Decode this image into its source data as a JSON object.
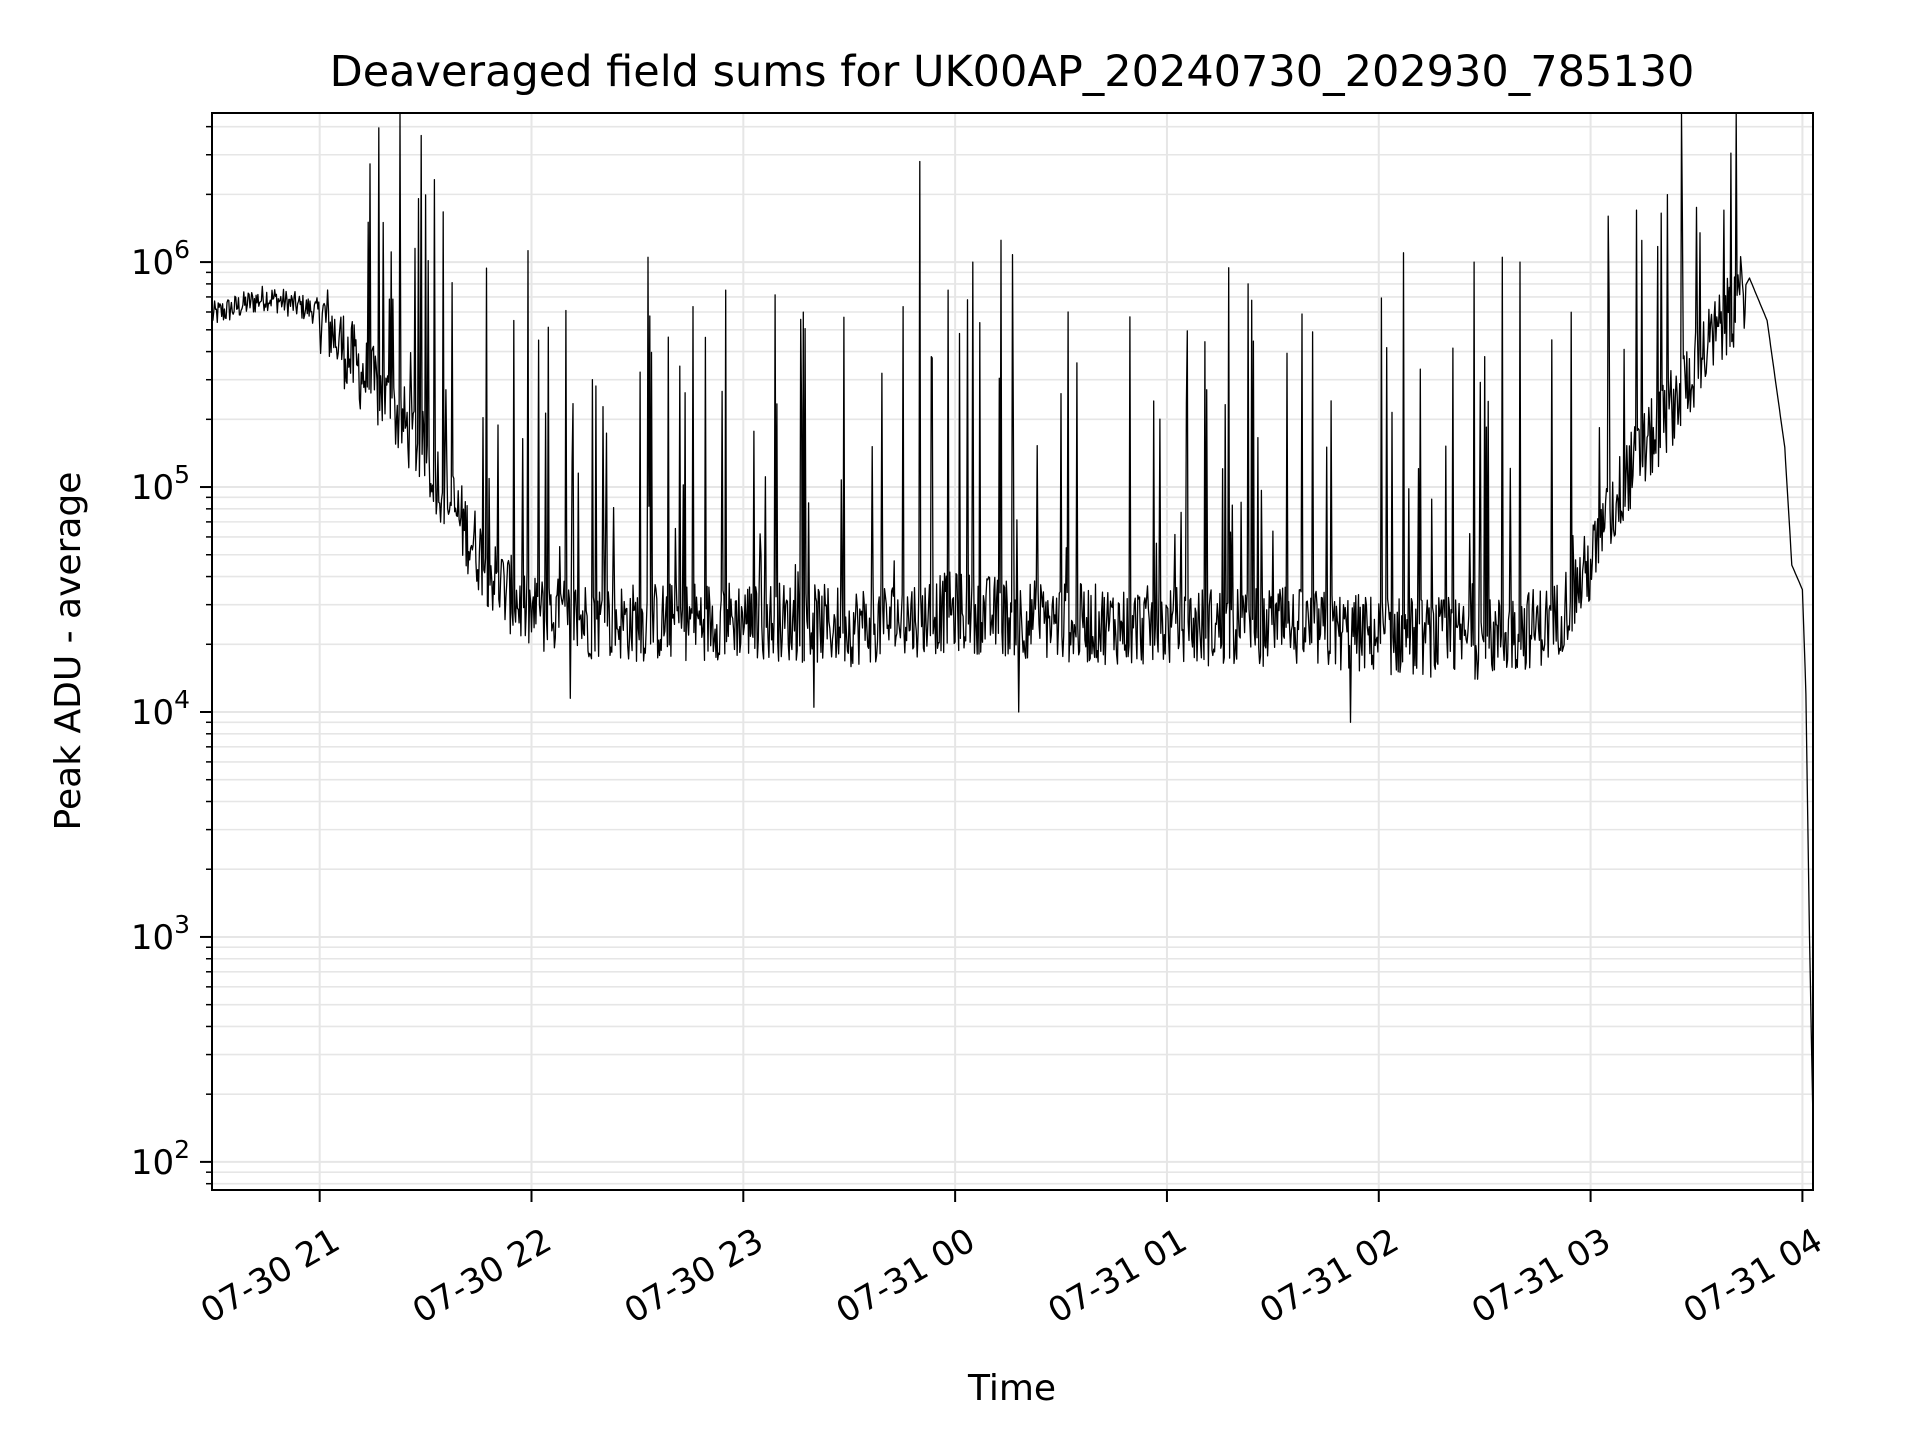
{
  "chart_data": {
    "type": "line",
    "title": "Deaveraged field sums for UK00AP_20240730_202930_785130",
    "xlabel": "Time",
    "ylabel": "Peak ADU - average",
    "yscale": "log",
    "ylim": [
      75,
      4600000
    ],
    "xlim": [
      "07-30 20:29:30",
      "07-31 04:03:00"
    ],
    "grid": true,
    "line_color": "#000000",
    "grid_color": "#e6e6e6",
    "x_ticks": [
      {
        "label": "07-30 21",
        "time": "07-30 21:00"
      },
      {
        "label": "07-30 22",
        "time": "07-30 22:00"
      },
      {
        "label": "07-30 23",
        "time": "07-30 23:00"
      },
      {
        "label": "07-31 00",
        "time": "07-31 00:00"
      },
      {
        "label": "07-31 01",
        "time": "07-31 01:00"
      },
      {
        "label": "07-31 02",
        "time": "07-31 02:00"
      },
      {
        "label": "07-31 03",
        "time": "07-31 03:00"
      },
      {
        "label": "07-31 04",
        "time": "07-31 04:00"
      }
    ],
    "y_ticks": [
      {
        "base": "10",
        "exp": "2",
        "value": 100
      },
      {
        "base": "10",
        "exp": "3",
        "value": 1000
      },
      {
        "base": "10",
        "exp": "4",
        "value": 10000
      },
      {
        "base": "10",
        "exp": "5",
        "value": 100000
      },
      {
        "base": "10",
        "exp": "6",
        "value": 1000000
      }
    ],
    "baseline": {
      "time": [
        "07-30 20:29:30",
        "07-30 20:45",
        "07-30 21:00",
        "07-30 21:10",
        "07-30 21:20",
        "07-30 21:30",
        "07-30 21:40",
        "07-30 21:50",
        "07-30 22:00",
        "07-30 22:30",
        "07-30 23:00",
        "07-30 23:30",
        "07-31 00:00",
        "07-31 00:30",
        "07-31 01:00",
        "07-31 01:30",
        "07-31 02:00",
        "07-31 02:30",
        "07-31 02:50",
        "07-31 03:00",
        "07-31 03:10",
        "07-31 03:20",
        "07-31 03:30",
        "07-31 03:40",
        "07-31 03:45",
        "07-31 03:50",
        "07-31 03:55",
        "07-31 03:57",
        "07-31 04:00",
        "07-31 04:01",
        "07-31 04:02",
        "07-31 04:03"
      ],
      "value": [
        580000,
        700000,
        600000,
        350000,
        230000,
        140000,
        70000,
        38000,
        27000,
        25000,
        26000,
        24000,
        28000,
        25000,
        24000,
        24000,
        22000,
        21000,
        25000,
        45000,
        110000,
        190000,
        350000,
        600000,
        850000,
        550000,
        150000,
        45000,
        35000,
        12000,
        1000,
        150
      ]
    },
    "spikes": [
      {
        "time": "07-30 21:18",
        "value": 1500000
      },
      {
        "time": "07-30 21:27",
        "value": 1150000
      },
      {
        "time": "07-30 21:55",
        "value": 550000
      },
      {
        "time": "07-30 22:02",
        "value": 450000
      },
      {
        "time": "07-30 22:33",
        "value": 1050000
      },
      {
        "time": "07-30 22:55",
        "value": 750000
      },
      {
        "time": "07-30 23:20",
        "value": 850000
      },
      {
        "time": "07-30 23:50",
        "value": 2800000
      },
      {
        "time": "07-30 23:58",
        "value": 750000
      },
      {
        "time": "07-31 00:05",
        "value": 1000000
      },
      {
        "time": "07-31 00:13",
        "value": 1250000
      },
      {
        "time": "07-31 00:32",
        "value": 600000
      },
      {
        "time": "07-31 01:23",
        "value": 800000
      },
      {
        "time": "07-31 01:52",
        "value": 420000
      },
      {
        "time": "07-31 02:07",
        "value": 1100000
      },
      {
        "time": "07-31 02:27",
        "value": 1000000
      },
      {
        "time": "07-31 02:35",
        "value": 1050000
      },
      {
        "time": "07-31 02:40",
        "value": 1000000
      },
      {
        "time": "07-31 03:05",
        "value": 1600000
      },
      {
        "time": "07-31 03:13",
        "value": 1700000
      },
      {
        "time": "07-31 03:20",
        "value": 1650000
      },
      {
        "time": "07-31 03:26",
        "value": 1550000
      },
      {
        "time": "07-31 03:31",
        "value": 1350000
      }
    ],
    "min_markers": [
      {
        "time": "07-30 22:11",
        "value": 11500
      },
      {
        "time": "07-30 23:20",
        "value": 10500
      },
      {
        "time": "07-31 00:18",
        "value": 10000
      },
      {
        "time": "07-31 01:52",
        "value": 9000
      }
    ]
  }
}
